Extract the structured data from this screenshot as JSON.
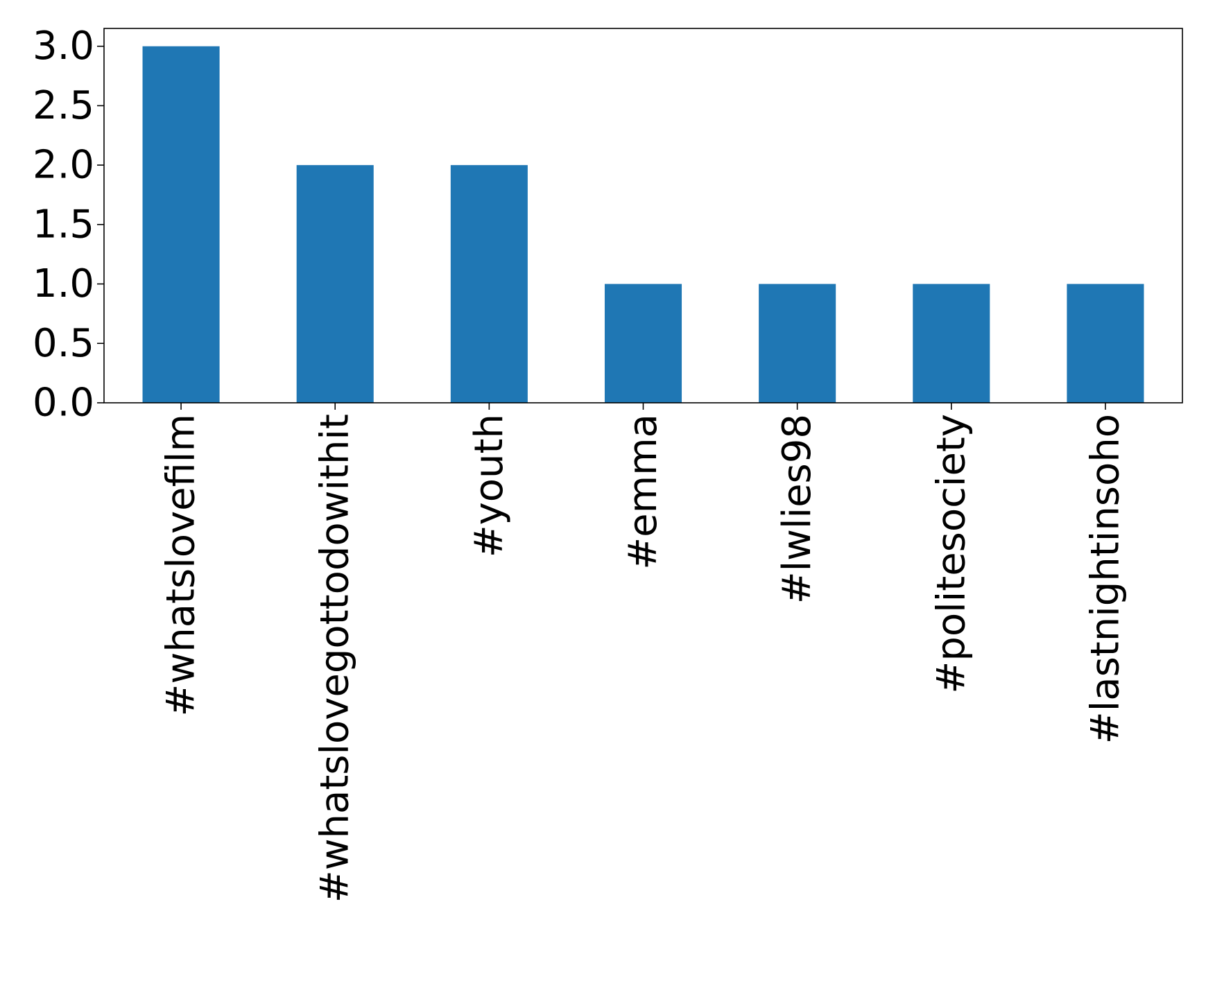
{
  "chart_data": {
    "type": "bar",
    "title": "",
    "xlabel": "",
    "ylabel": "",
    "categories": [
      "#whatslovefilm",
      "#whatslovegottodowithit",
      "#youth",
      "#emma",
      "#lwlies98",
      "#politesociety",
      "#lastnightinsoho"
    ],
    "values": [
      3,
      2,
      2,
      1,
      1,
      1,
      1
    ],
    "ylim": [
      0,
      3.15
    ],
    "yticks": [
      "0.0",
      "0.5",
      "1.0",
      "1.5",
      "2.0",
      "2.5",
      "3.0"
    ],
    "grid": false,
    "legend": "none",
    "bar_color": "#1f77b4"
  }
}
